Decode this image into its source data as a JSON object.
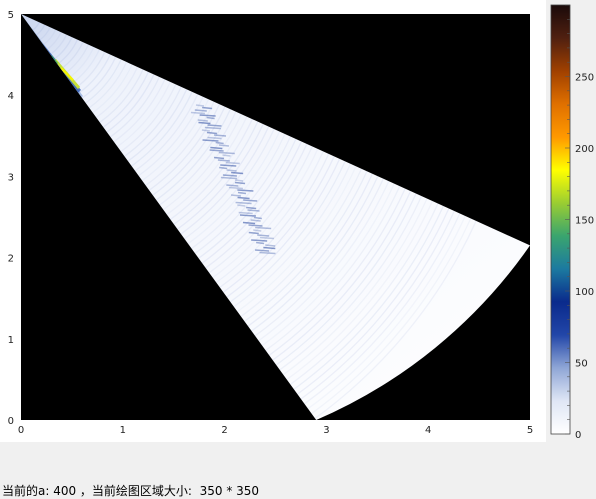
{
  "status_bar": {
    "text": "当前的a: 400 ，当前绘图区域大小:  350 * 350"
  },
  "colors": {
    "plot_background": "#000000",
    "panel_background": "#ffffff",
    "window_background": "#f0f0f0",
    "colormap": [
      "#ffffff",
      "#dfe6f5",
      "#8fa6d6",
      "#2246a8",
      "#0a2a8c",
      "#1c7aa0",
      "#3aa56e",
      "#9acd32",
      "#ffff00",
      "#ff9900",
      "#e07000",
      "#a04000",
      "#502010",
      "#1a0a0a"
    ]
  },
  "chart_data": {
    "type": "heatmap",
    "title": "",
    "xlabel": "",
    "ylabel": "",
    "xlim": [
      0,
      5
    ],
    "ylim": [
      0,
      5
    ],
    "x_ticks": [
      "0",
      "1",
      "2",
      "3",
      "4",
      "5"
    ],
    "y_ticks": [
      "0",
      "1",
      "2",
      "3",
      "4",
      "5"
    ],
    "colorbar": {
      "range": [
        0,
        300
      ],
      "ticks": [
        "0",
        "50",
        "100",
        "150",
        "200",
        "250"
      ]
    },
    "fan": {
      "apex": [
        0,
        5
      ],
      "edge_points": [
        [
          2.9,
          0
        ],
        [
          5.0,
          2.15
        ]
      ]
    }
  }
}
